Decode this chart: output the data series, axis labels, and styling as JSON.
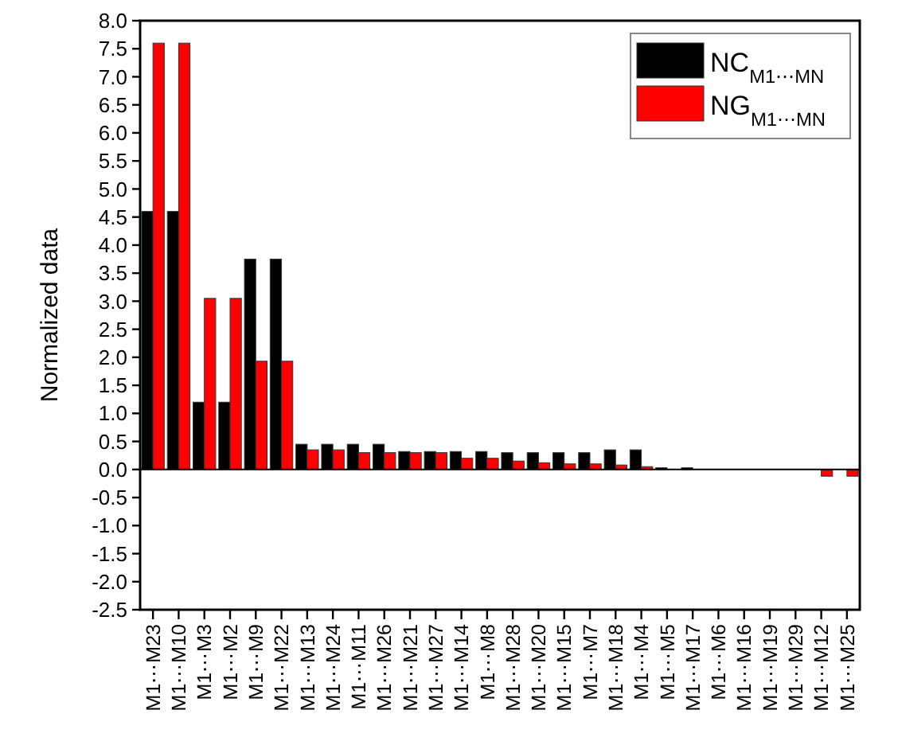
{
  "chart_data": {
    "type": "bar",
    "ylabel": "Normalized data",
    "categories": [
      "M1⋯M23",
      "M1⋯M10",
      "M1⋯M3",
      "M1⋯M2",
      "M1⋯M9",
      "M1⋯M22",
      "M1⋯M13",
      "M1⋯M24",
      "M1⋯M11",
      "M1⋯M26",
      "M1⋯M21",
      "M1⋯M27",
      "M1⋯M14",
      "M1⋯M8",
      "M1⋯M28",
      "M1⋯M20",
      "M1⋯M15",
      "M1⋯M7",
      "M1⋯M18",
      "M1⋯M4",
      "M1⋯M5",
      "M1⋯M17",
      "M1⋯M6",
      "M1⋯M16",
      "M1⋯M19",
      "M1⋯M29",
      "M1⋯M12",
      "M1⋯M25"
    ],
    "series": [
      {
        "name": "NC$_{M1⋯MN}$",
        "color": "#000000",
        "values": [
          4.6,
          4.6,
          1.2,
          1.2,
          3.75,
          3.75,
          0.45,
          0.45,
          0.45,
          0.45,
          0.32,
          0.32,
          0.32,
          0.32,
          0.3,
          0.3,
          0.3,
          0.3,
          0.35,
          0.35,
          0.03,
          0.03,
          0,
          0,
          0,
          0,
          0,
          0
        ]
      },
      {
        "name": "NG$_{M1⋯MN}$",
        "color": "#ff0000",
        "values": [
          7.6,
          7.6,
          3.05,
          3.05,
          1.93,
          1.93,
          0.35,
          0.35,
          0.3,
          0.3,
          0.3,
          0.3,
          0.2,
          0.2,
          0.15,
          0.12,
          0.1,
          0.1,
          0.08,
          0.05,
          0,
          0,
          0,
          0,
          0,
          0,
          -0.12,
          -0.12
        ]
      }
    ],
    "ylim": [
      -2.5,
      8
    ],
    "yticks": [
      {
        "value": -2.5,
        "label": "-2.5"
      },
      {
        "value": -2,
        "label": "-2.0"
      },
      {
        "value": -1.5,
        "label": "-1.5"
      },
      {
        "value": -1,
        "label": "-1.0"
      },
      {
        "value": -0.5,
        "label": "-0.5"
      },
      {
        "value": 0,
        "label": "0.0"
      },
      {
        "value": 0.5,
        "label": "0.5"
      },
      {
        "value": 1,
        "label": "1.0"
      },
      {
        "value": 1.5,
        "label": "1.5"
      },
      {
        "value": 2,
        "label": "2.0"
      },
      {
        "value": 2.5,
        "label": "2.5"
      },
      {
        "value": 3,
        "label": "3.0"
      },
      {
        "value": 3.5,
        "label": "3.5"
      },
      {
        "value": 4,
        "label": "4.0"
      },
      {
        "value": 4.5,
        "label": "4.5"
      },
      {
        "value": 5,
        "label": "5.0"
      },
      {
        "value": 5.5,
        "label": "5.5"
      },
      {
        "value": 6,
        "label": "6.0"
      },
      {
        "value": 6.5,
        "label": "6.5"
      },
      {
        "value": 7,
        "label": "7.0"
      },
      {
        "value": 7.5,
        "label": "7.5"
      },
      {
        "value": 8,
        "label": "8.0"
      }
    ],
    "legend": "top right"
  }
}
